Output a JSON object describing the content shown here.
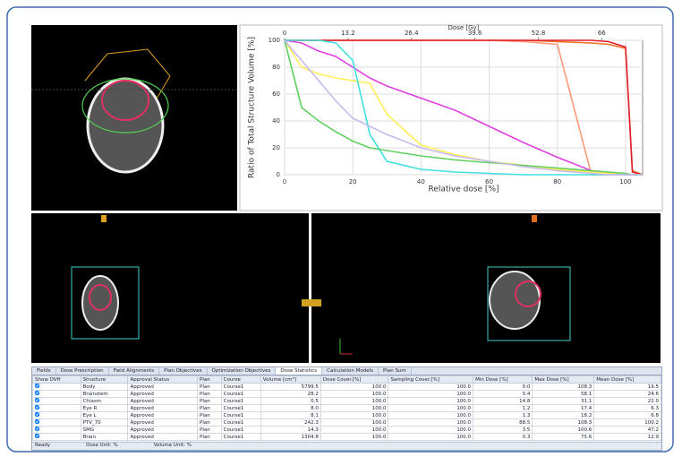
{
  "chart_data": {
    "type": "line",
    "xlabel": "Relative dose [%]",
    "ylabel": "Ratio of Total Structure Volume [%]",
    "x2label": "Dose [Gy]",
    "x": [
      0,
      5,
      10,
      15,
      20,
      25,
      30,
      40,
      50,
      60,
      70,
      80,
      90,
      95,
      100,
      102,
      105
    ],
    "series": [
      {
        "color": "#ff9a7a",
        "values": [
          100,
          100,
          100,
          100,
          100,
          100,
          100,
          100,
          100,
          100,
          99,
          97,
          0,
          0,
          0,
          0,
          0
        ]
      },
      {
        "color": "#f07020",
        "values": [
          100,
          100,
          100,
          100,
          100,
          100,
          100,
          100,
          100,
          100,
          100,
          99,
          98,
          97,
          94,
          3,
          0
        ]
      },
      {
        "color": "#e02030",
        "values": [
          100,
          100,
          100,
          100,
          100,
          100,
          100,
          100,
          100,
          100,
          100,
          100,
          100,
          99,
          95,
          2,
          0
        ]
      },
      {
        "color": "#e040e0",
        "values": [
          100,
          98,
          92,
          88,
          80,
          72,
          66,
          57,
          48,
          36,
          24,
          13,
          3,
          1,
          0,
          0,
          0
        ]
      },
      {
        "color": "#ffee55",
        "values": [
          100,
          80,
          75,
          72,
          70,
          68,
          45,
          22,
          15,
          10,
          7,
          4,
          2,
          1,
          0,
          0,
          0
        ]
      },
      {
        "color": "#40e0e0",
        "values": [
          100,
          100,
          100,
          98,
          85,
          30,
          10,
          4,
          2,
          1,
          0,
          0,
          0,
          0,
          0,
          0,
          0
        ]
      },
      {
        "color": "#60d060",
        "values": [
          100,
          50,
          40,
          32,
          25,
          20,
          18,
          14,
          11,
          9,
          7,
          5,
          3,
          2,
          1,
          0,
          0
        ]
      },
      {
        "color": "#c8b8f0",
        "values": [
          100,
          85,
          70,
          55,
          42,
          36,
          30,
          20,
          14,
          10,
          6,
          3,
          1,
          0,
          0,
          0,
          0
        ]
      }
    ],
    "xlim": [
      0,
      105
    ],
    "xticks": [
      0,
      20,
      40,
      60,
      80,
      100
    ],
    "ylim": [
      0,
      100
    ],
    "yticks": [
      0,
      20,
      40,
      60,
      80,
      100
    ],
    "x2lim": [
      0,
      74.5
    ],
    "x2ticks": [
      0,
      13.2,
      26.4,
      39.6,
      52.8,
      66
    ],
    "grid": true
  },
  "table": {
    "tabs": [
      "Fields",
      "Dose Prescription",
      "Field Alignments",
      "Plan Objectives",
      "Optimization Objectives",
      "Dose Statistics",
      "Calculation Models",
      "Plan Sum"
    ],
    "selected_tab": 5,
    "columns": [
      "Show DVH",
      "Structure",
      "Approval Status",
      "Plan",
      "Course",
      "Volume [cm³]",
      "Dose Cover.[%]",
      "Sampling Cover.[%]",
      "Min Dose [%]",
      "Max Dose [%]",
      "Mean Dose [%]"
    ],
    "rows": [
      [
        "Body",
        "Approved",
        "Plan",
        "Course1",
        "5799.5",
        "100.0",
        "100.0",
        "0.0",
        "108.3",
        "19.5"
      ],
      [
        "Brainstem",
        "Approved",
        "Plan",
        "Course1",
        "28.2",
        "100.0",
        "100.0",
        "0.4",
        "58.1",
        "24.6"
      ],
      [
        "Chiasm",
        "Approved",
        "Plan",
        "Course1",
        "0.5",
        "100.0",
        "100.0",
        "14.8",
        "31.1",
        "22.0"
      ],
      [
        "Eye R",
        "Approved",
        "Plan",
        "Course1",
        "8.0",
        "100.0",
        "100.0",
        "1.2",
        "17.4",
        "6.3"
      ],
      [
        "Eye L",
        "Approved",
        "Plan",
        "Course1",
        "8.1",
        "100.0",
        "100.0",
        "1.3",
        "18.2",
        "6.8"
      ],
      [
        "PTV_70",
        "Approved",
        "Plan",
        "Course1",
        "242.3",
        "100.0",
        "100.0",
        "88.5",
        "108.3",
        "100.2"
      ],
      [
        "SMG",
        "Approved",
        "Plan",
        "Course1",
        "14.3",
        "100.0",
        "100.0",
        "3.5",
        "100.6",
        "47.2"
      ],
      [
        "Brain",
        "Approved",
        "Plan",
        "Course1",
        "1304.8",
        "100.0",
        "100.0",
        "0.3",
        "75.6",
        "12.9"
      ]
    ]
  },
  "status": [
    "Ready",
    "Dose Unit: %",
    "Volume Unit: %"
  ]
}
